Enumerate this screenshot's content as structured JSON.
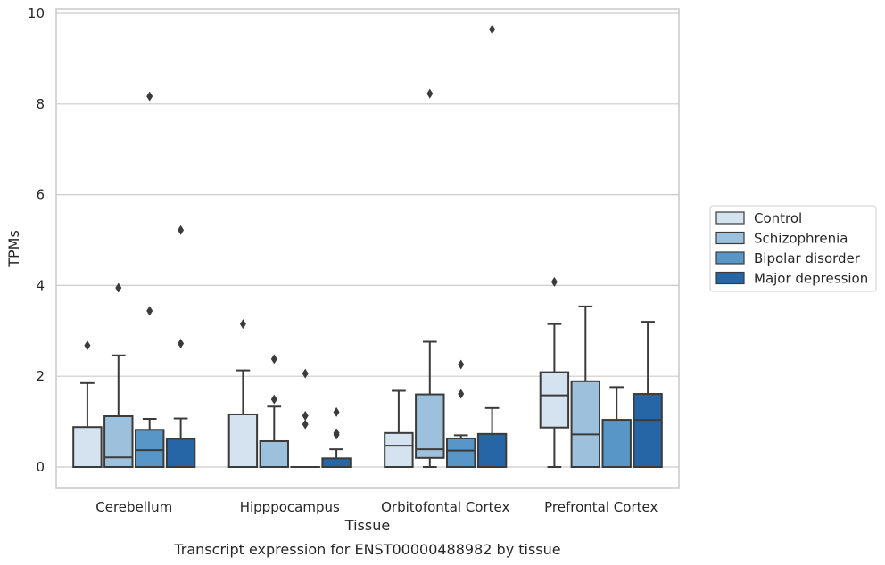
{
  "caption": "Transcript expression for ENST00000488982 by tissue",
  "chart_data": {
    "type": "box",
    "title": "",
    "xlabel": "Tissue",
    "ylabel": "TPMs",
    "ylim": [
      -0.45,
      10.15
    ],
    "yticks": [
      0,
      2,
      4,
      6,
      8,
      10
    ],
    "grid": "horizontal",
    "legend_position": "right",
    "categories": [
      "Cerebellum",
      "Hipppocampus",
      "Orbitofontal Cortex",
      "Prefrontal Cortex"
    ],
    "series": [
      {
        "name": "Control",
        "color": "#d5e2f0",
        "boxes": [
          {
            "whislo": 0,
            "q1": 0,
            "med": 0,
            "q3": 0.88,
            "whishi": 1.85,
            "fliers": [
              2.68
            ]
          },
          {
            "whislo": 0,
            "q1": 0,
            "med": 0,
            "q3": 1.16,
            "whishi": 2.13,
            "fliers": [
              3.15
            ]
          },
          {
            "whislo": 0,
            "q1": 0,
            "med": 0.47,
            "q3": 0.75,
            "whishi": 1.68,
            "fliers": []
          },
          {
            "whislo": 0,
            "q1": 0.87,
            "med": 1.58,
            "q3": 2.09,
            "whishi": 3.15,
            "fliers": [
              4.08
            ]
          }
        ]
      },
      {
        "name": "Schizophrenia",
        "color": "#9dc1dc",
        "boxes": [
          {
            "whislo": 0,
            "q1": 0,
            "med": 0.21,
            "q3": 1.12,
            "whishi": 2.46,
            "fliers": [
              3.95
            ]
          },
          {
            "whislo": 0,
            "q1": 0,
            "med": 0,
            "q3": 0.57,
            "whishi": 1.33,
            "fliers": [
              1.49,
              2.38
            ]
          },
          {
            "whislo": 0,
            "q1": 0.2,
            "med": 0.39,
            "q3": 1.6,
            "whishi": 2.76,
            "fliers": [
              8.23
            ]
          },
          {
            "whislo": 0,
            "q1": 0,
            "med": 0.72,
            "q3": 1.89,
            "whishi": 3.54,
            "fliers": []
          }
        ]
      },
      {
        "name": "Bipolar disorder",
        "color": "#5796c6",
        "boxes": [
          {
            "whislo": 0,
            "q1": 0,
            "med": 0.37,
            "q3": 0.82,
            "whishi": 1.06,
            "fliers": [
              3.44,
              8.17
            ]
          },
          {
            "whislo": 0,
            "q1": 0,
            "med": 0,
            "q3": 0,
            "whishi": 0,
            "fliers": [
              0.94,
              1.13,
              2.06
            ]
          },
          {
            "whislo": 0,
            "q1": 0,
            "med": 0.36,
            "q3": 0.63,
            "whishi": 0.7,
            "fliers": [
              1.61,
              2.26
            ]
          },
          {
            "whislo": 0,
            "q1": 0,
            "med": 0,
            "q3": 1.04,
            "whishi": 1.76,
            "fliers": []
          }
        ]
      },
      {
        "name": "Major depression",
        "color": "#2766a6",
        "boxes": [
          {
            "whislo": 0,
            "q1": 0,
            "med": 0,
            "q3": 0.62,
            "whishi": 1.07,
            "fliers": [
              2.72,
              5.22
            ]
          },
          {
            "whislo": 0,
            "q1": 0,
            "med": 0,
            "q3": 0.19,
            "whishi": 0.39,
            "fliers": [
              0.71,
              0.75,
              1.21
            ]
          },
          {
            "whislo": 0,
            "q1": 0,
            "med": 0,
            "q3": 0.73,
            "whishi": 1.3,
            "fliers": [
              9.65
            ]
          },
          {
            "whislo": 0,
            "q1": 0,
            "med": 1.04,
            "q3": 1.61,
            "whishi": 3.2,
            "fliers": []
          }
        ]
      }
    ]
  }
}
